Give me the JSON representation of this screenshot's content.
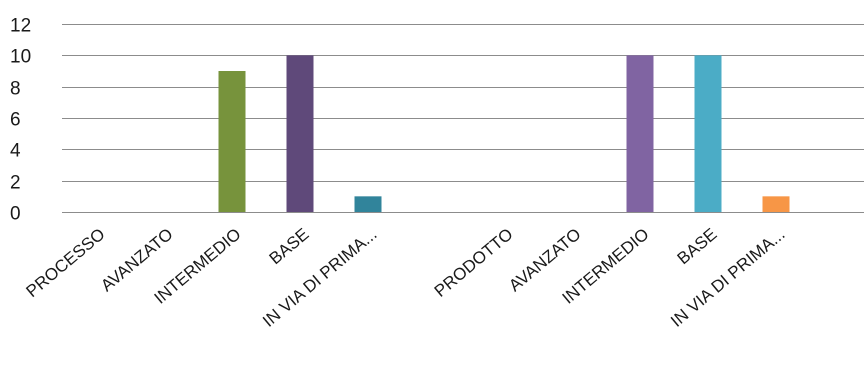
{
  "chart_data": {
    "type": "bar",
    "categories": [
      "PROCESSO",
      "AVANZATO",
      "INTERMEDIO",
      "BASE",
      "IN VIA DI PRIMA...",
      "",
      "PRODOTTO",
      "AVANZATO",
      "INTERMEDIO",
      "BASE",
      "IN VIA DI PRIMA..."
    ],
    "values": [
      0,
      0,
      9,
      10,
      1,
      null,
      0,
      0,
      10,
      10,
      1
    ],
    "colors": [
      "#4472c4",
      "#c0504d",
      "#77933c",
      "#5f497a",
      "#31849b",
      "#ffffff",
      "#4472c4",
      "#c0504d",
      "#8064a2",
      "#4bacc6",
      "#f79646"
    ],
    "ylim": [
      0,
      12
    ],
    "yticks": [
      "0",
      "2",
      "4",
      "6",
      "8",
      "10",
      "12"
    ],
    "grid": true,
    "title": "",
    "xlabel": "",
    "ylabel": ""
  }
}
